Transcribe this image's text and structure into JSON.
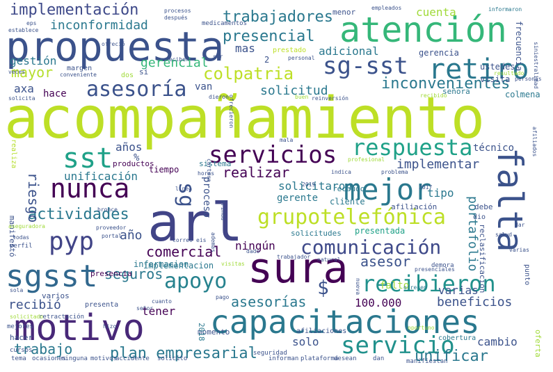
{
  "words": [
    "acompañamiento",
    "arl",
    "sura",
    "propuesta",
    "atención",
    "motivo",
    "capacitaciones",
    "falta",
    "sgsst",
    "mejor",
    "nunca",
    "servicios",
    "sst",
    "respuesta",
    "retiro",
    "sg-sst",
    "pyp",
    "grupotelefónica",
    "comunicación",
    "recibieron",
    "servicio",
    "asesoría",
    "apoyo",
    "sg",
    "implementación",
    "trabajadores",
    "presencial",
    "colpatria",
    "inconvenientes",
    "actividades",
    "plan empresarial",
    "unificar",
    "asesorías",
    "beneficios",
    "trabajo",
    "gerencial",
    "seguros",
    "comercial",
    "asesor",
    "portafolio",
    "inconformidad",
    "mayor",
    "realizar",
    "unificación",
    "solicitud",
    "implementar",
    "riesgo",
    "adicional",
    "cuenta",
    "gestión",
    "recibió",
    "ningún",
    "tener",
    "varias",
    "falto",
    "cambio",
    "tipo",
    "solicitaron",
    "gerente",
    "año",
    "años",
    "$",
    "100.000",
    "solo",
    "mas",
    "proceso",
    "axa",
    "técnico",
    "van",
    "hace",
    "mal",
    "señora",
    "visita",
    "colmena",
    "si",
    "dos",
    "margen",
    "ustedes",
    "gerencia",
    "menor",
    "presencia",
    "empleados",
    "procesos",
    "informaron",
    "medicamentos",
    "2",
    "prestado",
    "varios",
    "informacion",
    "presentada",
    "reclasificación",
    "manifestó",
    "afiliación",
    "solicitudes",
    "cliente",
    "momento",
    "afiliaciones",
    "debe",
    "dio",
    "recaudo",
    "productos",
    "sistema",
    "tiempo",
    "%",
    "cobertura",
    "hacer",
    "mejores",
    "presenta",
    "2018",
    "2019",
    "2017",
    "seguridad",
    "plataforma",
    "dan",
    "desean",
    "informan",
    "ninguna",
    "ocasiones",
    "tema",
    "motivos",
    "accidente",
    "solicito",
    "manifiestan",
    "oferta",
    "ofrecen",
    "oportuno",
    "cursos",
    "implementacion",
    "correo",
    "eis",
    "perfil",
    "proveedor",
    "dado",
    "dar",
    "salud",
    "todas",
    "portal",
    "bronce",
    "linea",
    "problema",
    "indica",
    "profesional",
    "cartera",
    "horas",
    "realiza",
    "hizo",
    "retractación",
    "solicitado",
    "cuanto",
    "pago",
    "punto",
    "visitas",
    "natural",
    "presenciales",
    "trabajador",
    "sola",
    "demora",
    "nueva",
    "afiliados",
    "siniestralidad",
    "frecuencia",
    "personas",
    "resultado",
    "recibido",
    "reinversión",
    "dieron",
    "ofrecieron",
    "buen",
    "solicita",
    "conveniente",
    "personal",
    "reciben",
    "ofreció",
    "ser",
    "después",
    "establece",
    "eps",
    "aseguradora",
    "brinda",
    "además",
    "falto",
    "cuenta",
    "inconveniente",
    "veces",
    "mala",
    "señor",
    "varias"
  ]
}
